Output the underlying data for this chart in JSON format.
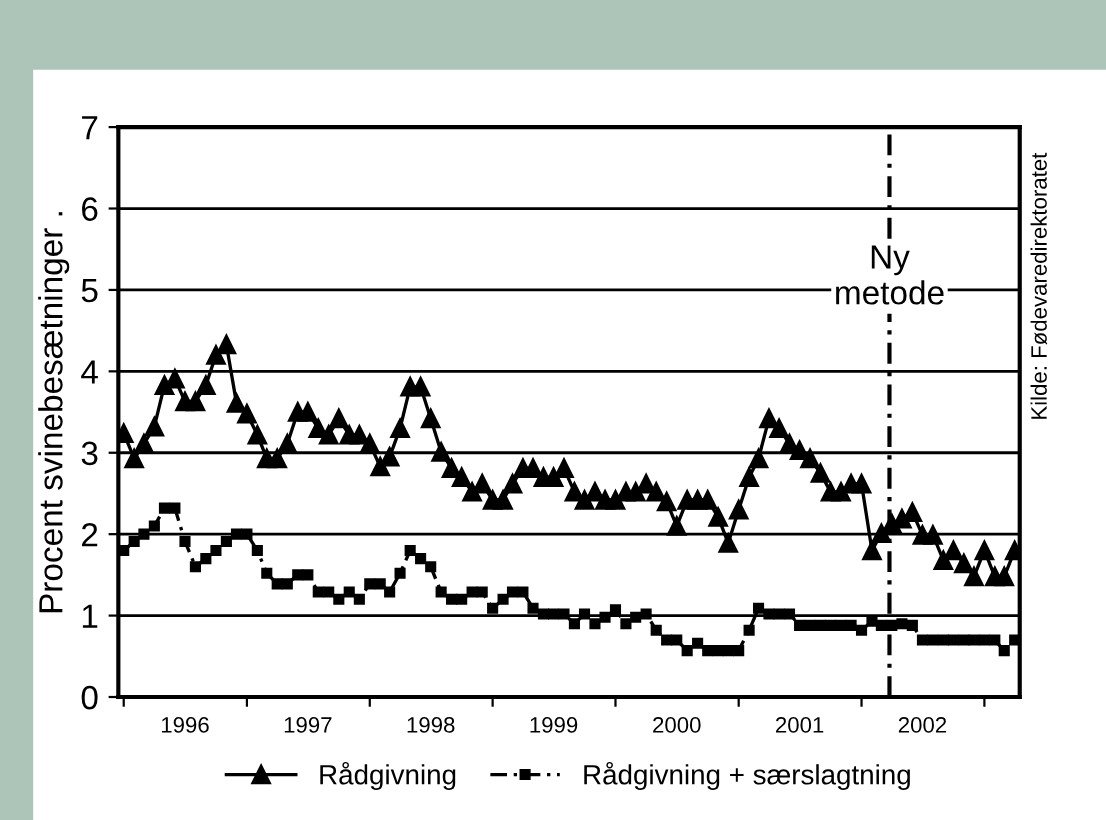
{
  "chart_data": {
    "type": "line",
    "ylabel": "Procent svinebesætninger .",
    "x": [
      "1996-01",
      "1996-02",
      "1996-03",
      "1996-04",
      "1996-05",
      "1996-06",
      "1996-07",
      "1996-08",
      "1996-09",
      "1996-10",
      "1996-11",
      "1996-12",
      "1997-01",
      "1997-02",
      "1997-03",
      "1997-04",
      "1997-05",
      "1997-06",
      "1997-07",
      "1997-08",
      "1997-09",
      "1997-10",
      "1997-11",
      "1997-12",
      "1998-01",
      "1998-02",
      "1998-03",
      "1998-04",
      "1998-05",
      "1998-06",
      "1998-07",
      "1998-08",
      "1998-09",
      "1998-10",
      "1998-11",
      "1998-12",
      "1999-01",
      "1999-02",
      "1999-03",
      "1999-04",
      "1999-05",
      "1999-06",
      "1999-07",
      "1999-08",
      "1999-09",
      "1999-10",
      "1999-11",
      "1999-12",
      "2000-01",
      "2000-02",
      "2000-03",
      "2000-04",
      "2000-05",
      "2000-06",
      "2000-07",
      "2000-08",
      "2000-09",
      "2000-10",
      "2000-11",
      "2000-12",
      "2001-01",
      "2001-02",
      "2001-03",
      "2001-04",
      "2001-05",
      "2001-06",
      "2001-07",
      "2001-08",
      "2001-09",
      "2001-10",
      "2001-11",
      "2001-12",
      "2002-01",
      "2002-02",
      "2002-03",
      "2002-04",
      "2002-05",
      "2002-06",
      "2002-07",
      "2002-08",
      "2002-09",
      "2002-10",
      "2002-11",
      "2002-12",
      "2003-01",
      "2003-02",
      "2003-03",
      "2003-04"
    ],
    "series": [
      {
        "name": "Rådgivning",
        "color": "#000000",
        "marker": "triangle",
        "line_style": "solid",
        "values": [
          3.24,
          2.93,
          3.11,
          3.32,
          3.83,
          3.91,
          3.63,
          3.63,
          3.83,
          4.2,
          4.33,
          3.61,
          3.48,
          3.22,
          2.93,
          2.93,
          3.11,
          3.5,
          3.5,
          3.3,
          3.22,
          3.42,
          3.22,
          3.22,
          3.11,
          2.83,
          2.95,
          3.3,
          3.81,
          3.81,
          3.42,
          3.01,
          2.81,
          2.7,
          2.52,
          2.62,
          2.42,
          2.42,
          2.62,
          2.81,
          2.81,
          2.7,
          2.7,
          2.81,
          2.52,
          2.42,
          2.52,
          2.42,
          2.42,
          2.52,
          2.52,
          2.62,
          2.52,
          2.4,
          2.1,
          2.42,
          2.42,
          2.42,
          2.21,
          1.89,
          2.3,
          2.7,
          2.93,
          3.42,
          3.3,
          3.11,
          3.03,
          2.93,
          2.75,
          2.52,
          2.52,
          2.62,
          2.62,
          1.8,
          2.01,
          2.13,
          2.19,
          2.27,
          1.99,
          1.99,
          1.68,
          1.8,
          1.64,
          1.48,
          1.8,
          1.48,
          1.48,
          1.8
        ]
      },
      {
        "name": "Rådgivning + særslagtning",
        "color": "#000000",
        "marker": "square",
        "line_style": "dashed",
        "values": [
          1.8,
          1.91,
          2.0,
          2.1,
          2.32,
          2.32,
          1.91,
          1.6,
          1.7,
          1.8,
          1.91,
          2.0,
          2.0,
          1.8,
          1.52,
          1.39,
          1.39,
          1.5,
          1.5,
          1.29,
          1.29,
          1.2,
          1.29,
          1.2,
          1.39,
          1.39,
          1.29,
          1.52,
          1.8,
          1.7,
          1.6,
          1.29,
          1.2,
          1.2,
          1.29,
          1.29,
          1.09,
          1.2,
          1.29,
          1.29,
          1.09,
          1.02,
          1.02,
          1.02,
          0.9,
          1.02,
          0.9,
          0.98,
          1.07,
          0.9,
          0.98,
          1.02,
          0.82,
          0.7,
          0.7,
          0.57,
          0.66,
          0.57,
          0.57,
          0.57,
          0.57,
          0.82,
          1.09,
          1.02,
          1.02,
          1.02,
          0.88,
          0.88,
          0.88,
          0.88,
          0.88,
          0.88,
          0.82,
          0.93,
          0.88,
          0.88,
          0.9,
          0.88,
          0.7,
          0.7,
          0.7,
          0.7,
          0.7,
          0.7,
          0.7,
          0.7,
          0.57,
          0.7
        ]
      }
    ],
    "xlim": [
      "1995-12-16",
      "2003-04-16"
    ],
    "xticks": [
      {
        "value": "1996-01-01",
        "label": null
      },
      {
        "value": "1996-07-01",
        "label": "1996"
      },
      {
        "value": "1997-01-01",
        "label": null
      },
      {
        "value": "1997-07-01",
        "label": "1997"
      },
      {
        "value": "1998-01-01",
        "label": null
      },
      {
        "value": "1998-07-01",
        "label": "1998"
      },
      {
        "value": "1999-01-01",
        "label": null
      },
      {
        "value": "1999-07-01",
        "label": "1999"
      },
      {
        "value": "2000-01-01",
        "label": null
      },
      {
        "value": "2000-07-01",
        "label": "2000"
      },
      {
        "value": "2001-01-01",
        "label": null
      },
      {
        "value": "2001-07-01",
        "label": "2001"
      },
      {
        "value": "2002-01-01",
        "label": null
      },
      {
        "value": "2002-07-01",
        "label": "2002"
      },
      {
        "value": "2003-01-01",
        "label": null
      }
    ],
    "ylim": [
      0,
      7
    ],
    "yticks": [
      0,
      1,
      2,
      3,
      4,
      5,
      6,
      7
    ],
    "grid": "y",
    "legend": "bottom",
    "ref_lines": [
      {
        "axis": "x",
        "value": "2002-03-25",
        "label": "Ny\nmetode",
        "line_style": "dashed",
        "color": "#000000"
      }
    ],
    "annotations": [
      "Kilde: Fødevaredirektoratet"
    ]
  }
}
